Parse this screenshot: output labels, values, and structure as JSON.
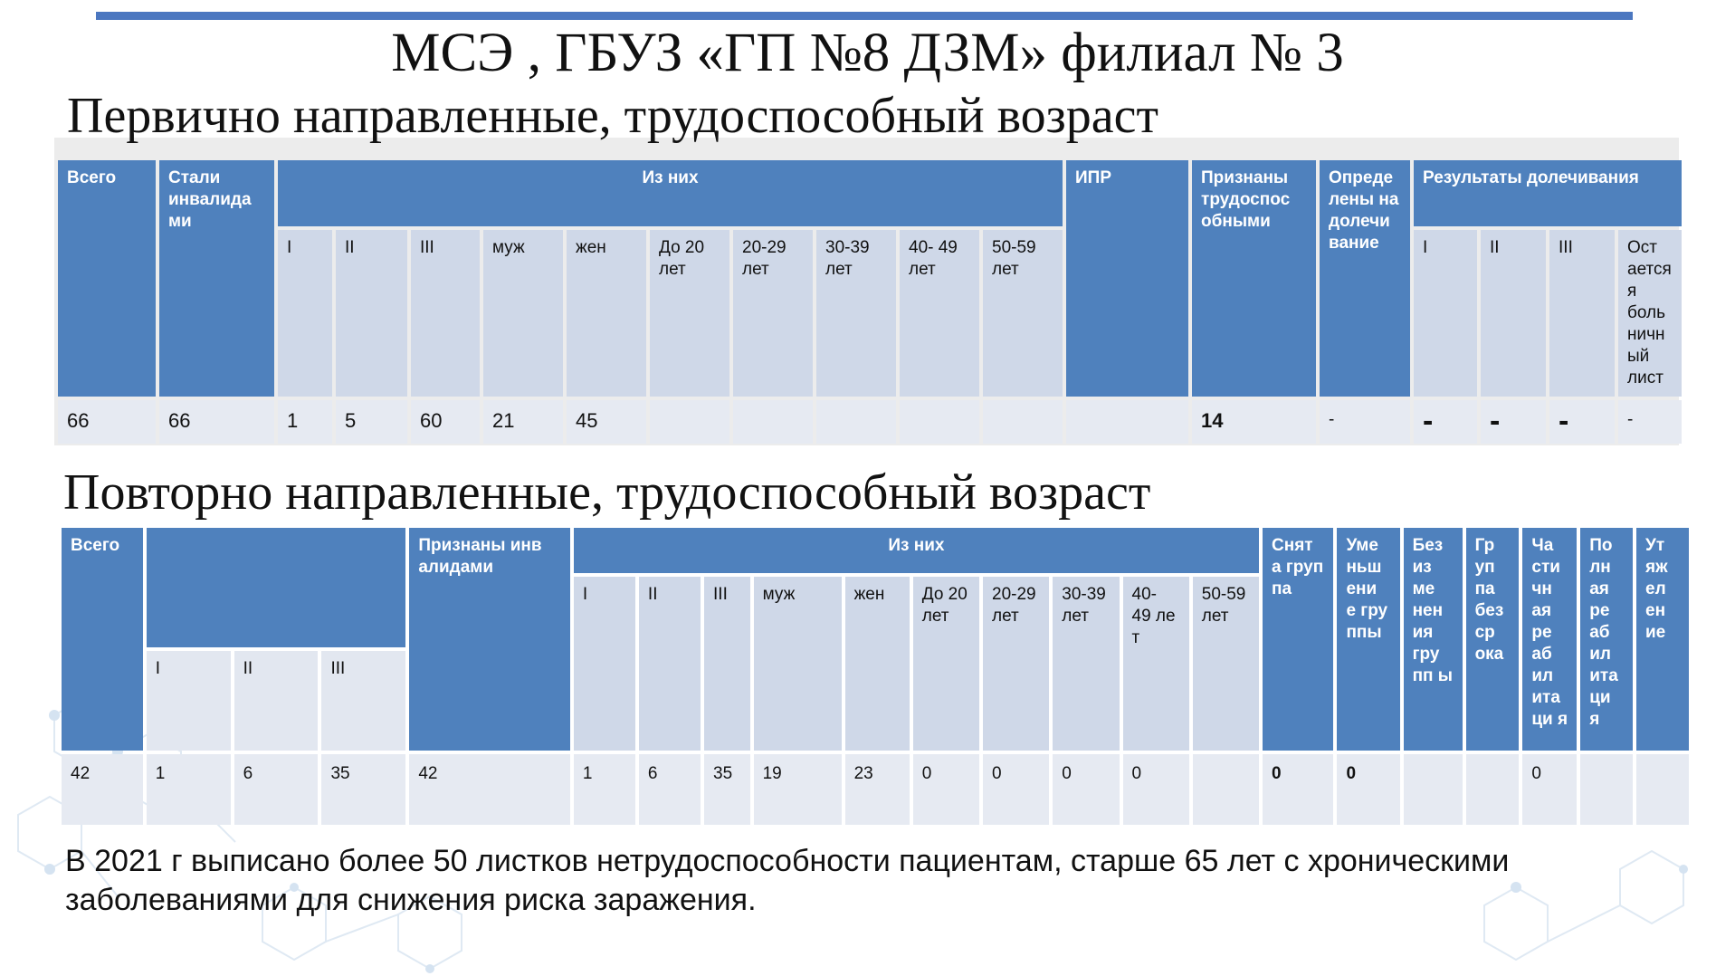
{
  "slide": {
    "title": "МСЭ , ГБУЗ «ГП №8 ДЗМ» филиал №  3",
    "footnote": "В 2021 г выписано более 50 листков нетрудоспособности пациентам, старше 65 лет с хроническими заболеваниями для снижения риска заражения."
  },
  "primary": {
    "heading": "Первично направленные, трудоспособный возраст",
    "headers": {
      "total": "Всего",
      "became_disabled": "Стали инвалида ми",
      "of_them": "Из них",
      "ipr": "ИПР",
      "recognized_able": "Признаны трудоспос обными",
      "defined_aftercare": "Опреде лены на долечи вание",
      "aftercare_results": "Результаты долечивания"
    },
    "subheaders": {
      "g1": "I",
      "g2": "II",
      "g3": "III",
      "male": "муж",
      "female": "жен",
      "age_u20": "До 20 лет",
      "age_20_29": "20-29 лет",
      "age_30_39": "30-39 лет",
      "age_40_49": "40- 49 лет",
      "age_50_59": "50-59 лет",
      "r1": "I",
      "r2": "II",
      "r3": "III",
      "r_sick": "Ост ается я боль ничн ый лист"
    },
    "row": {
      "total": "66",
      "became_disabled": "66",
      "g1": "1",
      "g2": "5",
      "g3": "60",
      "male": "21",
      "female": "45",
      "age_u20": "",
      "age_20_29": "",
      "age_30_39": "",
      "age_40_49": "",
      "age_50_59": "",
      "ipr": "",
      "recognized_able": "14",
      "defined_aftercare": "-",
      "r1": "-",
      "r2": "-",
      "r3": "-",
      "r_sick": "-"
    }
  },
  "repeat": {
    "heading": "Повторно направленные, трудоспособный возраст",
    "headers": {
      "total": "Всего",
      "recognized_disabled": "Признаны инв алидами",
      "of_them": "Из них",
      "group_removed": "Снят а груп па",
      "group_reduced": "Уме ньш ени е гру ппы",
      "no_change": "Без из ме нен ия гру пп ы",
      "group_indefinite": "Гр уп па без ср ока",
      "partial_rehab": "Ча сти чн ая ре аб ил ита ци я",
      "full_rehab": "По лн ая ре аб ил ита ци я",
      "lost": "Ут яж ел ен ие"
    },
    "subheaders": {
      "pg1": "I",
      "pg2": "II",
      "pg3": "III",
      "g1": "I",
      "g2": "II",
      "g3": "III",
      "male": "муж",
      "female": "жен",
      "age_u20": "До 20 лет",
      "age_20_29": "20-29 лет",
      "age_30_39": "30-39 лет",
      "age_40_49": "40- 49 ле т",
      "age_50_59": "50-59 лет"
    },
    "row": {
      "total": "42",
      "pg1": "1",
      "pg2": "6",
      "pg3": "35",
      "recognized_disabled": "42",
      "g1": "1",
      "g2": "6",
      "g3": "35",
      "male": "19",
      "female": "23",
      "age_u20": "0",
      "age_20_29": "0",
      "age_30_39": "0",
      "age_40_49": "0",
      "age_50_59": "",
      "group_removed": "0",
      "group_reduced": "0",
      "no_change": "",
      "group_indefinite": "",
      "partial_rehab": "0",
      "full_rehab": "",
      "lost": ""
    }
  }
}
